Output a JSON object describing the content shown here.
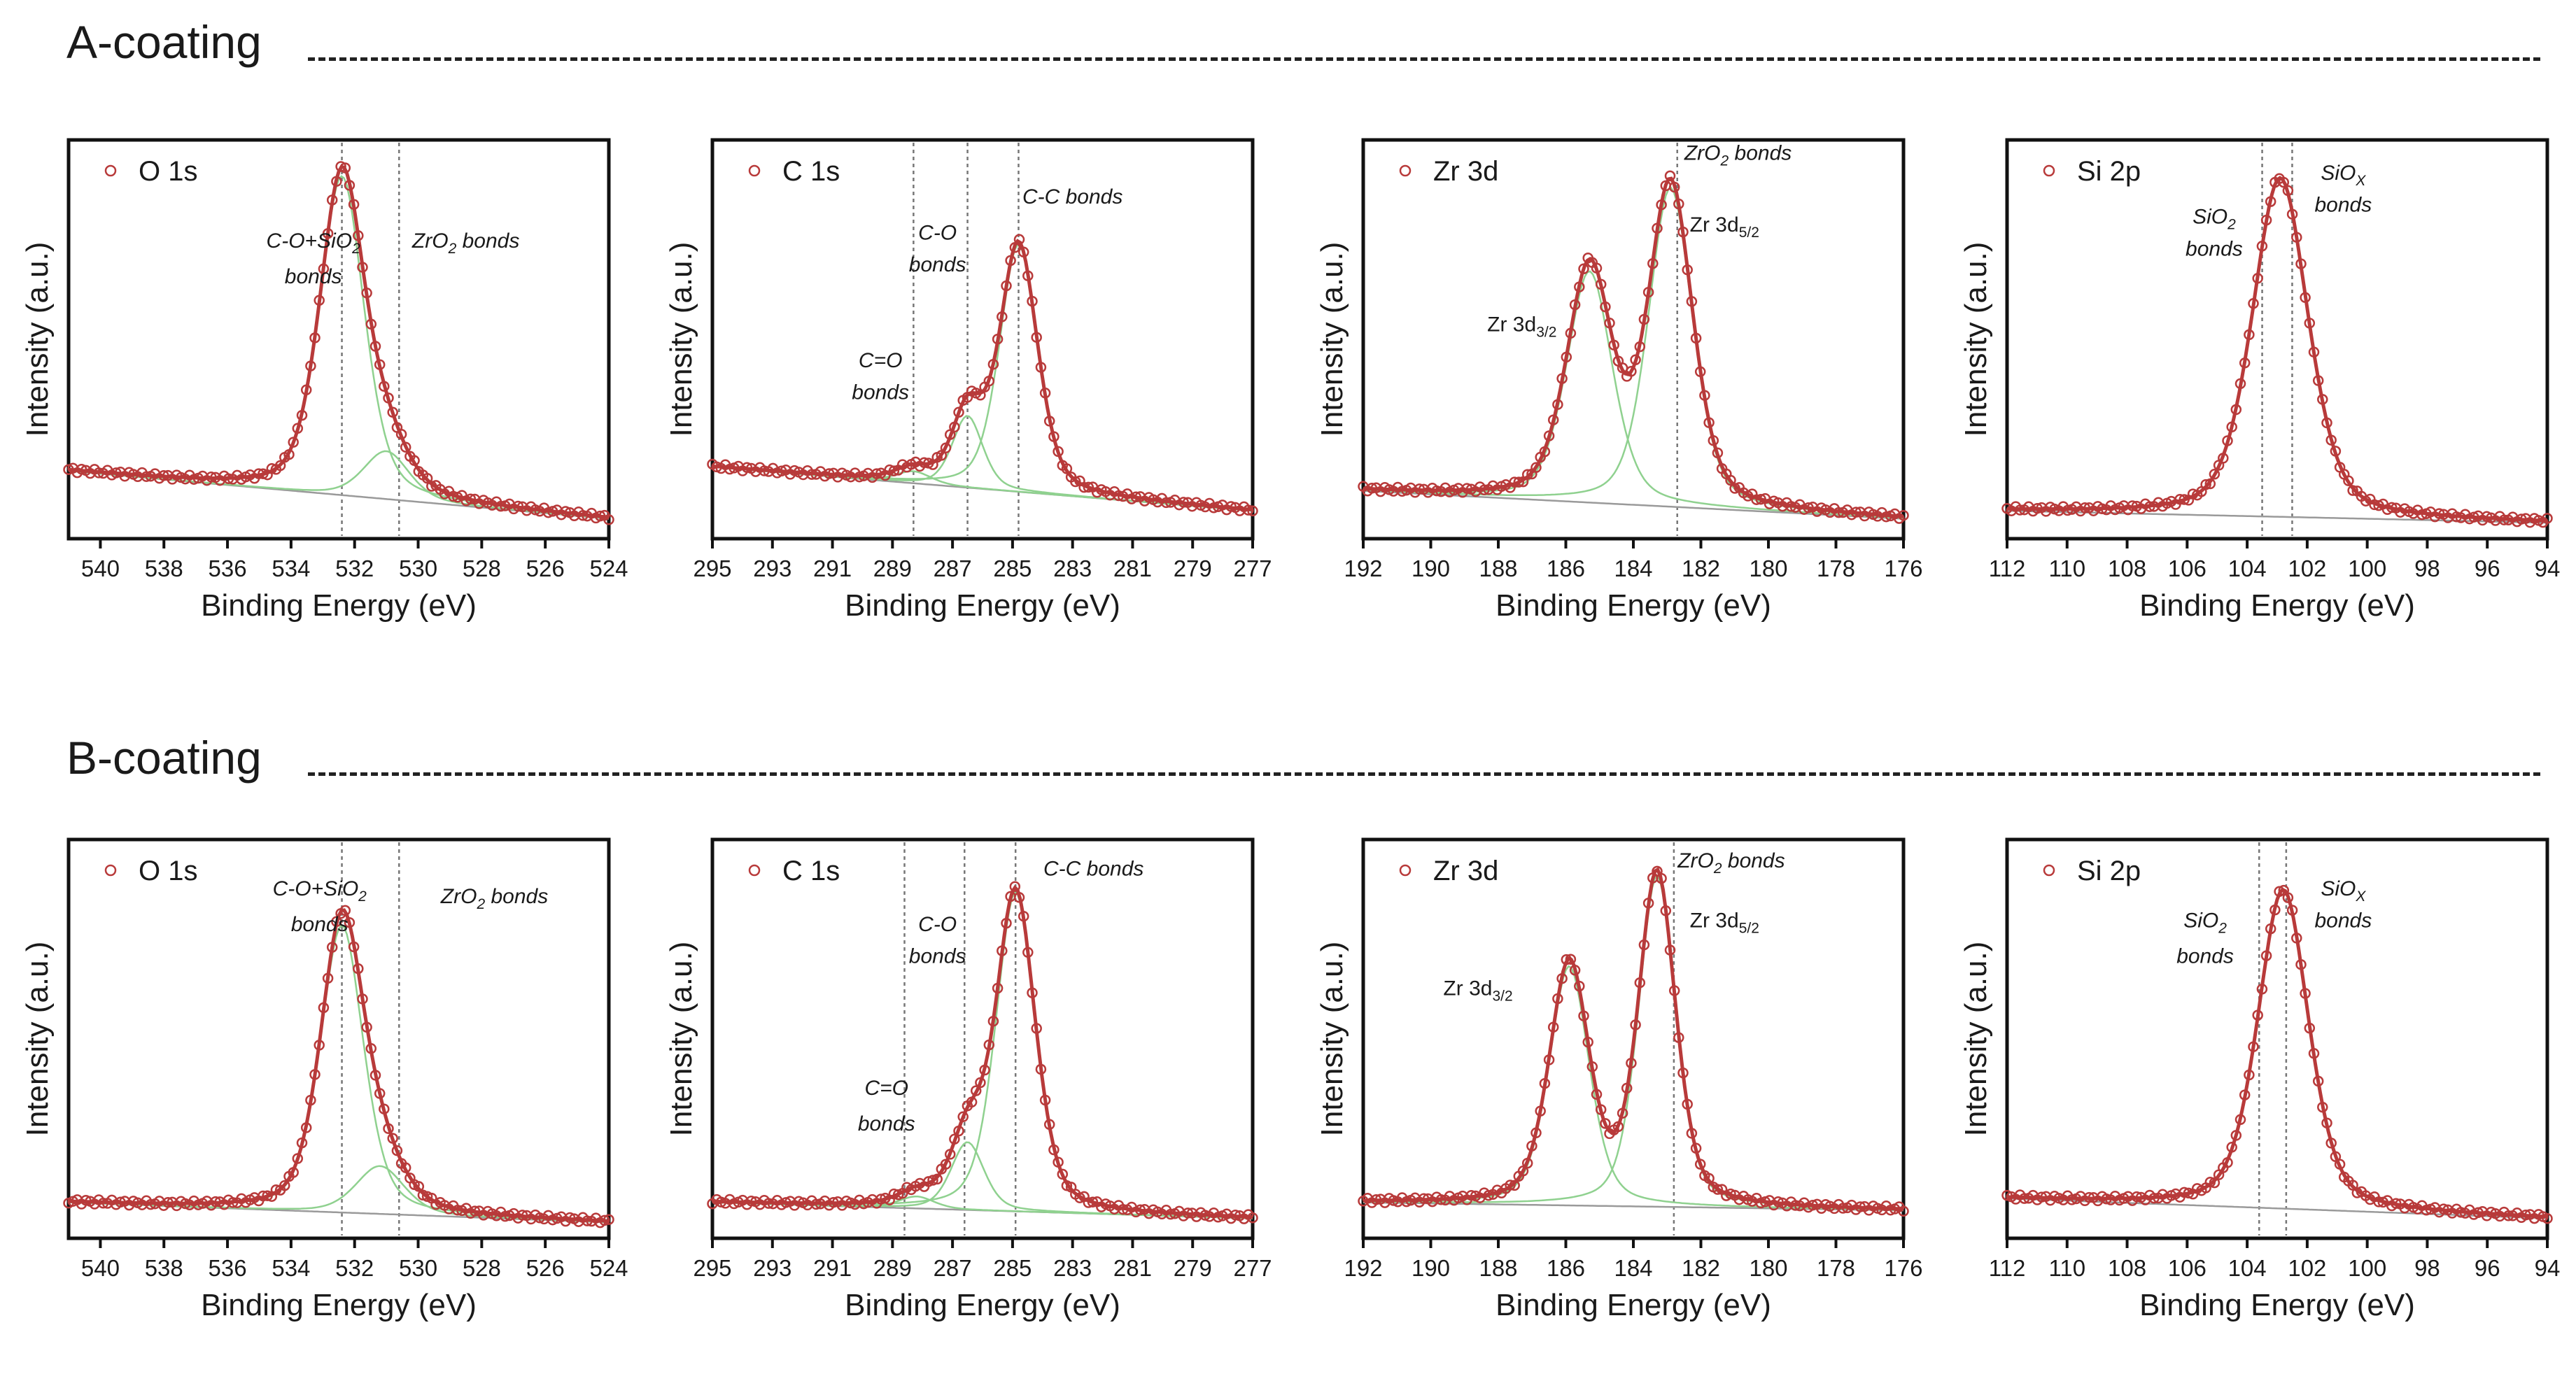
{
  "colors": {
    "data": "#b83a3a",
    "fit": "#b83a3a",
    "component": "#8fd18f",
    "background": "#9a9a9a",
    "ref": "#777777"
  },
  "chart_data": [
    {
      "section": "A-coating",
      "type": "scatter",
      "legend": "O 1s",
      "xlabel": "Binding Energy (eV)",
      "ylabel": "Intensity (a.u.)",
      "xlim": [
        541,
        524
      ],
      "ticks": [
        540,
        538,
        536,
        534,
        532,
        530,
        528,
        526,
        524
      ],
      "base": [
        0.17,
        0.05
      ],
      "peaks": [
        [
          532.4,
          1.65,
          0.8
        ],
        [
          531.0,
          1.7,
          0.12
        ]
      ],
      "refs": [
        532.4,
        530.6
      ],
      "annotations": [
        {
          "x": 533.3,
          "y": 0.73,
          "text": "C-O+SiO",
          "sub": "2",
          "after": "",
          "italic": true
        },
        {
          "x": 533.3,
          "y": 0.64,
          "text": "bonds",
          "sub": "",
          "after": "",
          "italic": true
        },
        {
          "x": 528.5,
          "y": 0.73,
          "text": "ZrO",
          "sub": "2",
          "after": " bonds",
          "italic": true
        }
      ]
    },
    {
      "section": "A-coating",
      "type": "scatter",
      "legend": "C 1s",
      "xlabel": "Binding Energy (eV)",
      "ylabel": "Intensity (a.u.)",
      "xlim": [
        295,
        277
      ],
      "ticks": [
        295,
        293,
        291,
        289,
        287,
        285,
        283,
        281,
        279,
        277
      ],
      "base": [
        0.18,
        0.07
      ],
      "peaks": [
        [
          284.8,
          1.5,
          0.62
        ],
        [
          286.5,
          1.2,
          0.18
        ],
        [
          288.3,
          1.4,
          0.03
        ]
      ],
      "refs": [
        288.3,
        286.5,
        284.8
      ],
      "annotations": [
        {
          "x": 287.5,
          "y": 0.75,
          "text": "C-O",
          "sub": "",
          "after": "",
          "italic": true
        },
        {
          "x": 287.5,
          "y": 0.67,
          "text": "bonds",
          "sub": "",
          "after": "",
          "italic": true
        },
        {
          "x": 283.0,
          "y": 0.84,
          "text": "C-C bonds",
          "sub": "",
          "after": "",
          "italic": true
        },
        {
          "x": 289.4,
          "y": 0.43,
          "text": "C=O",
          "sub": "",
          "after": "",
          "italic": true
        },
        {
          "x": 289.4,
          "y": 0.35,
          "text": "bonds",
          "sub": "",
          "after": "",
          "italic": true
        }
      ]
    },
    {
      "section": "A-coating",
      "type": "scatter",
      "legend": "Zr 3d",
      "xlabel": "Binding Energy (eV)",
      "ylabel": "Intensity (a.u.)",
      "xlim": [
        192,
        176
      ],
      "ticks": [
        192,
        190,
        188,
        186,
        184,
        182,
        180,
        178,
        176
      ],
      "base": [
        0.12,
        0.05
      ],
      "peaks": [
        [
          185.3,
          1.6,
          0.58
        ],
        [
          182.9,
          1.55,
          0.8
        ]
      ],
      "refs": [
        182.7
      ],
      "annotations": [
        {
          "x": 187.3,
          "y": 0.52,
          "text": "Zr 3d",
          "sub": "3/2",
          "after": "",
          "italic": false
        },
        {
          "x": 180.9,
          "y": 0.95,
          "text": "ZrO",
          "sub": "2",
          "after": " bonds",
          "italic": true
        },
        {
          "x": 181.3,
          "y": 0.77,
          "text": "Zr 3d",
          "sub": "5/2",
          "after": "",
          "italic": false
        }
      ]
    },
    {
      "section": "A-coating",
      "type": "scatter",
      "legend": "Si 2p",
      "xlabel": "Binding Energy (eV)",
      "ylabel": "Intensity (a.u.)",
      "xlim": [
        112,
        94
      ],
      "ticks": [
        112,
        110,
        108,
        106,
        104,
        102,
        100,
        98,
        96,
        94
      ],
      "base": [
        0.07,
        0.04
      ],
      "peaks": [
        [
          102.9,
          2.2,
          0.85
        ]
      ],
      "refs": [
        103.5,
        102.5
      ],
      "annotations": [
        {
          "x": 105.1,
          "y": 0.79,
          "text": "SiO",
          "sub": "2",
          "after": "",
          "italic": true
        },
        {
          "x": 105.1,
          "y": 0.71,
          "text": "bonds",
          "sub": "",
          "after": "",
          "italic": true
        },
        {
          "x": 100.8,
          "y": 0.9,
          "text": "SiO",
          "sub": "X",
          "after": "",
          "italic": true
        },
        {
          "x": 100.8,
          "y": 0.82,
          "text": "bonds",
          "sub": "",
          "after": "",
          "italic": true
        }
      ]
    },
    {
      "section": "B-coating",
      "type": "scatter",
      "legend": "O 1s",
      "xlabel": "Binding Energy (eV)",
      "ylabel": "Intensity (a.u.)",
      "xlim": [
        541,
        524
      ],
      "ticks": [
        540,
        538,
        536,
        534,
        532,
        530,
        528,
        526,
        524
      ],
      "base": [
        0.09,
        0.04
      ],
      "peaks": [
        [
          532.4,
          1.6,
          0.72
        ],
        [
          531.2,
          1.8,
          0.12
        ]
      ],
      "refs": [
        532.4,
        530.6
      ],
      "annotations": [
        {
          "x": 533.1,
          "y": 0.86,
          "text": "C-O+SiO",
          "sub": "2",
          "after": "",
          "italic": true
        },
        {
          "x": 533.1,
          "y": 0.77,
          "text": "bonds",
          "sub": "",
          "after": "",
          "italic": true
        },
        {
          "x": 527.6,
          "y": 0.84,
          "text": "ZrO",
          "sub": "2",
          "after": " bonds",
          "italic": true
        }
      ]
    },
    {
      "section": "B-coating",
      "type": "scatter",
      "legend": "C 1s",
      "xlabel": "Binding Energy (eV)",
      "ylabel": "Intensity (a.u.)",
      "xlim": [
        295,
        277
      ],
      "ticks": [
        295,
        293,
        291,
        289,
        287,
        285,
        283,
        281,
        279,
        277
      ],
      "base": [
        0.09,
        0.05
      ],
      "peaks": [
        [
          284.9,
          1.55,
          0.8
        ],
        [
          286.5,
          1.3,
          0.17
        ],
        [
          288.2,
          1.4,
          0.03
        ]
      ],
      "refs": [
        288.6,
        286.6,
        284.9
      ],
      "annotations": [
        {
          "x": 287.5,
          "y": 0.77,
          "text": "C-O",
          "sub": "",
          "after": "",
          "italic": true
        },
        {
          "x": 287.5,
          "y": 0.69,
          "text": "bonds",
          "sub": "",
          "after": "",
          "italic": true
        },
        {
          "x": 282.3,
          "y": 0.91,
          "text": "C-C bonds",
          "sub": "",
          "after": "",
          "italic": true
        },
        {
          "x": 289.2,
          "y": 0.36,
          "text": "C=O",
          "sub": "",
          "after": "",
          "italic": true
        },
        {
          "x": 289.2,
          "y": 0.27,
          "text": "bonds",
          "sub": "",
          "after": "",
          "italic": true
        }
      ]
    },
    {
      "section": "B-coating",
      "type": "scatter",
      "legend": "Zr 3d",
      "xlabel": "Binding Energy (eV)",
      "ylabel": "Intensity (a.u.)",
      "xlim": [
        192,
        176
      ],
      "ticks": [
        192,
        190,
        188,
        186,
        184,
        182,
        180,
        178,
        176
      ],
      "base": [
        0.09,
        0.07
      ],
      "peaks": [
        [
          185.9,
          1.4,
          0.6
        ],
        [
          183.3,
          1.3,
          0.83
        ]
      ],
      "refs": [
        182.8
      ],
      "annotations": [
        {
          "x": 188.6,
          "y": 0.61,
          "text": "Zr 3d",
          "sub": "3/2",
          "after": "",
          "italic": false
        },
        {
          "x": 181.1,
          "y": 0.93,
          "text": "ZrO",
          "sub": "2",
          "after": " bonds",
          "italic": true
        },
        {
          "x": 181.3,
          "y": 0.78,
          "text": "Zr 3d",
          "sub": "5/2",
          "after": "",
          "italic": false
        }
      ]
    },
    {
      "section": "B-coating",
      "type": "scatter",
      "legend": "Si 2p",
      "xlabel": "Binding Energy (eV)",
      "ylabel": "Intensity (a.u.)",
      "xlim": [
        112,
        94
      ],
      "ticks": [
        112,
        110,
        108,
        106,
        104,
        102,
        100,
        98,
        96,
        94
      ],
      "base": [
        0.1,
        0.05
      ],
      "peaks": [
        [
          102.8,
          2.0,
          0.8
        ]
      ],
      "refs": [
        103.6,
        102.7
      ],
      "annotations": [
        {
          "x": 105.4,
          "y": 0.78,
          "text": "SiO",
          "sub": "2",
          "after": "",
          "italic": true
        },
        {
          "x": 105.4,
          "y": 0.69,
          "text": "bonds",
          "sub": "",
          "after": "",
          "italic": true
        },
        {
          "x": 100.8,
          "y": 0.86,
          "text": "SiO",
          "sub": "X",
          "after": "",
          "italic": true
        },
        {
          "x": 100.8,
          "y": 0.78,
          "text": "bonds",
          "sub": "",
          "after": "",
          "italic": true
        }
      ]
    }
  ],
  "sections": [
    "A-coating",
    "B-coating"
  ]
}
